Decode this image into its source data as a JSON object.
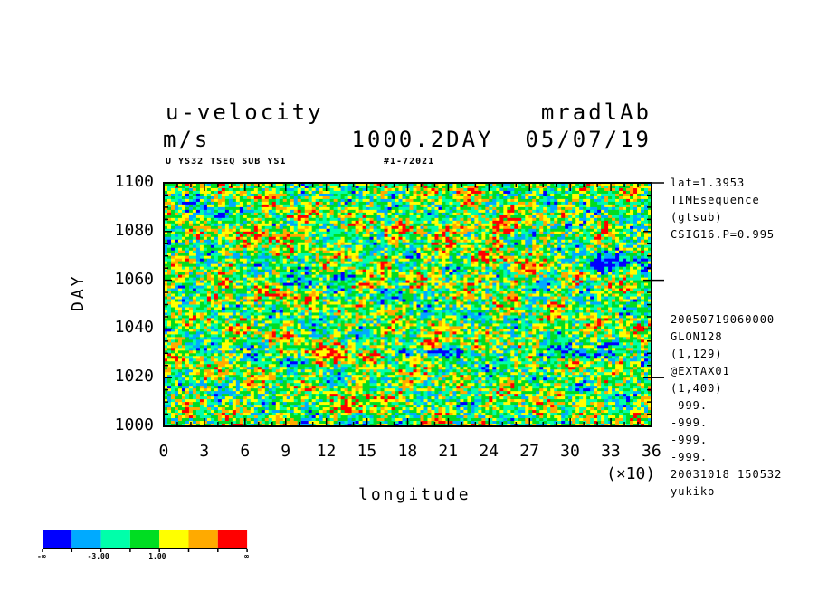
{
  "header": {
    "variable": "u-velocity",
    "units": "m/s",
    "experiment": "mradlAb",
    "time_date": "1000.2DAY  05/07/19",
    "subtitle_left": "U YS32 TSEQ SUB YS1",
    "subtitle_right": "#1-72021"
  },
  "side_info": {
    "top": [
      "lat=1.3953",
      "TIMEsequence",
      "(gtsub)",
      "CSIG16.P=0.995"
    ],
    "bottom": [
      "20050719060000",
      "GLON128",
      "(1,129)",
      "@EXTAX01",
      "(1,400)",
      "-999.",
      "-999.",
      "-999.",
      "-999.",
      "20031018 150532",
      "yukiko"
    ]
  },
  "colorbar": {
    "colors": [
      "#0000ff",
      "#00aaff",
      "#00ffaa",
      "#00dd22",
      "#ffff00",
      "#ffaa00",
      "#ff0000"
    ],
    "labels": [
      "-∞",
      "-3.00",
      "1.00",
      "∞"
    ]
  },
  "chart_data": {
    "type": "heatmap",
    "title": "u-velocity",
    "xlabel": "longitude",
    "ylabel": "DAY",
    "x_scale_note": "(×10)",
    "xlim": [
      0,
      36
    ],
    "ylim": [
      1000,
      1100
    ],
    "x_ticks": [
      "0",
      "3",
      "6",
      "9",
      "12",
      "15",
      "18",
      "21",
      "24",
      "27",
      "30",
      "33",
      "36"
    ],
    "y_ticks": [
      "1000",
      "1020",
      "1040",
      "1060",
      "1080",
      "1100"
    ],
    "levels": [
      "-∞",
      "-3.00",
      "1.00",
      "∞"
    ],
    "grid": false
  }
}
